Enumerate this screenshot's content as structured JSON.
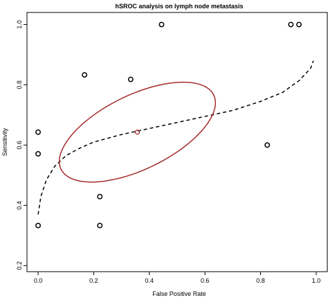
{
  "chart_data": {
    "type": "scatter",
    "title": "hSROC analysis on lymph node metastasis",
    "xlabel": "False Positive Rate",
    "ylabel": "Sensitivity",
    "xlim": [
      -0.04,
      1.04
    ],
    "ylim": [
      0.18,
      1.04
    ],
    "x_ticks": [
      0.0,
      0.2,
      0.4,
      0.6,
      0.8,
      1.0
    ],
    "x_tick_labels": [
      "0.0",
      "0.2",
      "0.4",
      "0.6",
      "0.8",
      "1.0"
    ],
    "y_ticks": [
      0.2,
      0.4,
      0.6,
      0.8,
      1.0
    ],
    "y_tick_labels": [
      "0.2",
      "0.4",
      "0.6",
      "0.8",
      "1.0"
    ],
    "grid": false,
    "legend": "none",
    "study_points": {
      "x": [
        0.0,
        0.0,
        0.0,
        0.167,
        0.222,
        0.222,
        0.333,
        0.444,
        0.824,
        0.909,
        0.938
      ],
      "y": [
        0.333,
        0.571,
        0.643,
        0.833,
        0.429,
        0.333,
        0.818,
        1.0,
        0.6,
        1.0,
        1.0
      ]
    },
    "summary_point": {
      "x": 0.357,
      "y": 0.643
    },
    "confidence_region": {
      "center_x": 0.357,
      "center_y": 0.643,
      "semi_axis_major": 0.301,
      "semi_axis_minor": 0.125,
      "rotation_deg": 23.4
    },
    "hsroc_curve": {
      "x": [
        0.0,
        0.01,
        0.03,
        0.06,
        0.1,
        0.15,
        0.2,
        0.3,
        0.4,
        0.5,
        0.6,
        0.7,
        0.8,
        0.88,
        0.94,
        0.98,
        0.99
      ],
      "y": [
        0.37,
        0.43,
        0.485,
        0.53,
        0.565,
        0.59,
        0.61,
        0.635,
        0.655,
        0.675,
        0.695,
        0.715,
        0.745,
        0.775,
        0.815,
        0.855,
        0.88
      ]
    },
    "colors": {
      "study_points": "#000000",
      "summary_point": "#a52a2a",
      "confidence_region": "#a52a2a",
      "hsroc_curve": "#000000"
    }
  }
}
